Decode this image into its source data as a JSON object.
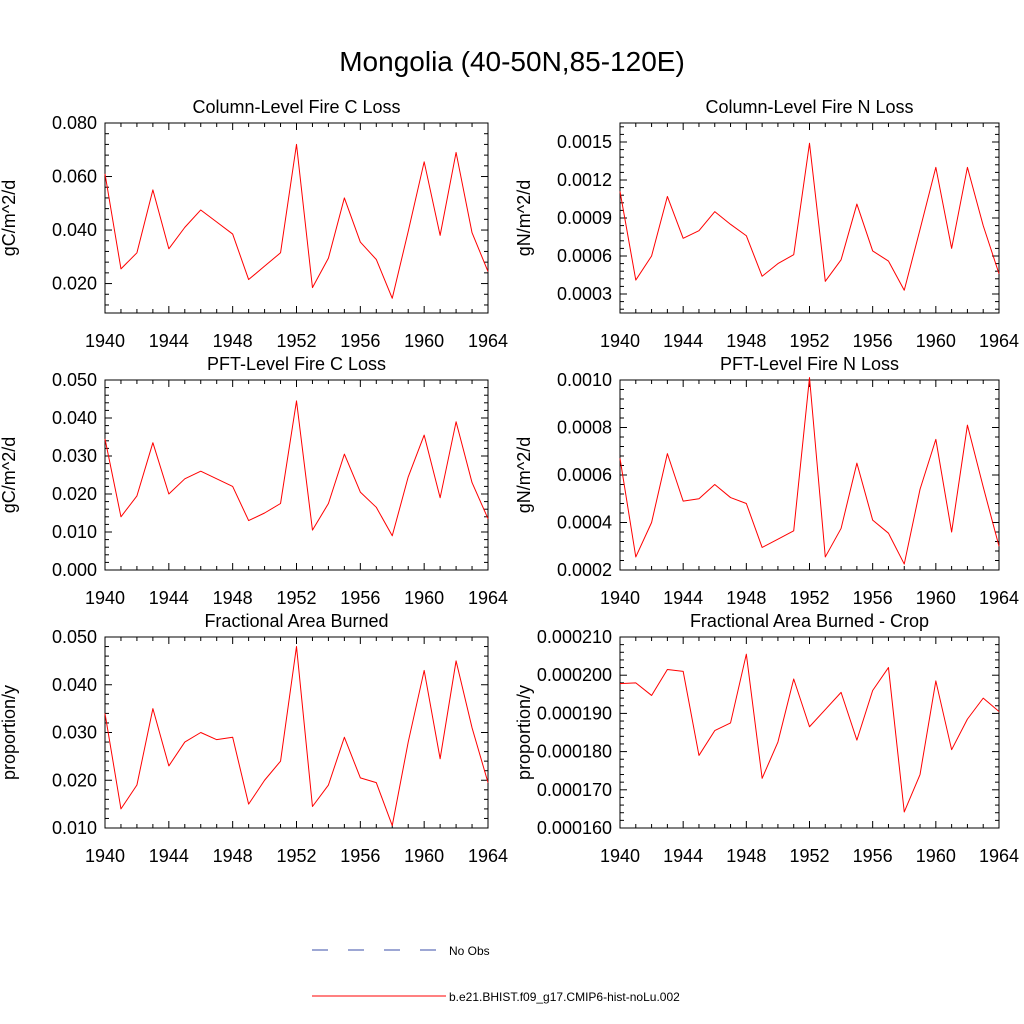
{
  "title": "Mongolia (40-50N,85-120E)",
  "colors": {
    "model_line": "#ff0000",
    "obs_line": "#3b4fa8",
    "axis": "#000000"
  },
  "legend": {
    "entries": [
      {
        "label": "No Obs",
        "style": "dashed",
        "color": "#3b4fa8"
      },
      {
        "label": "b.e21.BHIST.f09_g17.CMIP6-hist-noLu.002",
        "style": "solid",
        "color": "#ff0000"
      }
    ]
  },
  "chart_data": [
    {
      "type": "line",
      "title": "Column-Level Fire C Loss",
      "ylabel": "gC/m^2/d",
      "xlim": [
        1940,
        1964
      ],
      "ylim": [
        0.009,
        0.08
      ],
      "xticks": [
        "1940",
        "1944",
        "1948",
        "1952",
        "1956",
        "1960",
        "1964"
      ],
      "yticks": [
        "0.020",
        "0.040",
        "0.060",
        "0.080"
      ],
      "x": [
        1940,
        1941,
        1942,
        1943,
        1944,
        1945,
        1946,
        1947,
        1948,
        1949,
        1950,
        1951,
        1952,
        1953,
        1954,
        1955,
        1956,
        1957,
        1958,
        1959,
        1960,
        1961,
        1962,
        1963,
        1964
      ],
      "series": [
        {
          "name": "b.e21.BHIST.f09_g17.CMIP6-hist-noLu.002",
          "values": [
            0.061,
            0.0255,
            0.0315,
            0.055,
            0.033,
            0.041,
            0.0475,
            0.043,
            0.0385,
            0.0215,
            0.0265,
            0.0315,
            0.072,
            0.0185,
            0.0295,
            0.052,
            0.0355,
            0.029,
            0.0145,
            0.0395,
            0.0655,
            0.038,
            0.069,
            0.039,
            0.0245
          ]
        }
      ]
    },
    {
      "type": "line",
      "title": "Column-Level Fire N Loss",
      "ylabel": "gN/m^2/d",
      "xlim": [
        1940,
        1964
      ],
      "ylim": [
        0.00015,
        0.00165
      ],
      "xticks": [
        "1940",
        "1944",
        "1948",
        "1952",
        "1956",
        "1960",
        "1964"
      ],
      "yticks": [
        "0.0003",
        "0.0006",
        "0.0009",
        "0.0012",
        "0.0015"
      ],
      "x": [
        1940,
        1941,
        1942,
        1943,
        1944,
        1945,
        1946,
        1947,
        1948,
        1949,
        1950,
        1951,
        1952,
        1953,
        1954,
        1955,
        1956,
        1957,
        1958,
        1959,
        1960,
        1961,
        1962,
        1963,
        1964
      ],
      "series": [
        {
          "name": "b.e21.BHIST.f09_g17.CMIP6-hist-noLu.002",
          "values": [
            0.00111,
            0.00041,
            0.0006,
            0.00107,
            0.00074,
            0.0008,
            0.00095,
            0.00085,
            0.00076,
            0.00044,
            0.00054,
            0.00061,
            0.00149,
            0.0004,
            0.00057,
            0.00101,
            0.00064,
            0.00056,
            0.00033,
            0.00081,
            0.0013,
            0.00066,
            0.0013,
            0.00084,
            0.00046
          ]
        }
      ]
    },
    {
      "type": "line",
      "title": "PFT-Level Fire C Loss",
      "ylabel": "gC/m^2/d",
      "xlim": [
        1940,
        1964
      ],
      "ylim": [
        0.0,
        0.05
      ],
      "xticks": [
        "1940",
        "1944",
        "1948",
        "1952",
        "1956",
        "1960",
        "1964"
      ],
      "yticks": [
        "0.000",
        "0.010",
        "0.020",
        "0.030",
        "0.040",
        "0.050"
      ],
      "x": [
        1940,
        1941,
        1942,
        1943,
        1944,
        1945,
        1946,
        1947,
        1948,
        1949,
        1950,
        1951,
        1952,
        1953,
        1954,
        1955,
        1956,
        1957,
        1958,
        1959,
        1960,
        1961,
        1962,
        1963,
        1964
      ],
      "series": [
        {
          "name": "b.e21.BHIST.f09_g17.CMIP6-hist-noLu.002",
          "values": [
            0.0345,
            0.014,
            0.0195,
            0.0335,
            0.02,
            0.024,
            0.026,
            0.024,
            0.022,
            0.013,
            0.015,
            0.0175,
            0.0445,
            0.0105,
            0.0175,
            0.0305,
            0.0205,
            0.0165,
            0.009,
            0.0245,
            0.0355,
            0.019,
            0.039,
            0.023,
            0.0135
          ]
        }
      ]
    },
    {
      "type": "line",
      "title": "PFT-Level Fire N Loss",
      "ylabel": "gN/m^2/d",
      "xlim": [
        1940,
        1964
      ],
      "ylim": [
        0.0002,
        0.001
      ],
      "xticks": [
        "1940",
        "1944",
        "1948",
        "1952",
        "1956",
        "1960",
        "1964"
      ],
      "yticks": [
        "0.0002",
        "0.0004",
        "0.0006",
        "0.0008",
        "0.0010"
      ],
      "x": [
        1940,
        1941,
        1942,
        1943,
        1944,
        1945,
        1946,
        1947,
        1948,
        1949,
        1950,
        1951,
        1952,
        1953,
        1954,
        1955,
        1956,
        1957,
        1958,
        1959,
        1960,
        1961,
        1962,
        1963,
        1964
      ],
      "series": [
        {
          "name": "b.e21.BHIST.f09_g17.CMIP6-hist-noLu.002",
          "values": [
            0.00067,
            0.000255,
            0.0004,
            0.00069,
            0.00049,
            0.0005,
            0.00056,
            0.000505,
            0.00048,
            0.000295,
            0.00033,
            0.000365,
            0.00101,
            0.000255,
            0.000375,
            0.00065,
            0.00041,
            0.000355,
            0.000225,
            0.00054,
            0.00075,
            0.00036,
            0.00081,
            0.00055,
            0.0003
          ]
        }
      ]
    },
    {
      "type": "line",
      "title": "Fractional Area Burned",
      "ylabel": "proportion/y",
      "xlim": [
        1940,
        1964
      ],
      "ylim": [
        0.01,
        0.05
      ],
      "xticks": [
        "1940",
        "1944",
        "1948",
        "1952",
        "1956",
        "1960",
        "1964"
      ],
      "yticks": [
        "0.010",
        "0.020",
        "0.030",
        "0.040",
        "0.050"
      ],
      "x": [
        1940,
        1941,
        1942,
        1943,
        1944,
        1945,
        1946,
        1947,
        1948,
        1949,
        1950,
        1951,
        1952,
        1953,
        1954,
        1955,
        1956,
        1957,
        1958,
        1959,
        1960,
        1961,
        1962,
        1963,
        1964
      ],
      "series": [
        {
          "name": "b.e21.BHIST.f09_g17.CMIP6-hist-noLu.002",
          "values": [
            0.034,
            0.014,
            0.019,
            0.035,
            0.023,
            0.028,
            0.03,
            0.0285,
            0.029,
            0.015,
            0.02,
            0.024,
            0.048,
            0.0145,
            0.019,
            0.029,
            0.0205,
            0.0195,
            0.0105,
            0.028,
            0.043,
            0.0245,
            0.045,
            0.031,
            0.0195
          ]
        }
      ]
    },
    {
      "type": "line",
      "title": "Fractional Area Burned - Crop",
      "ylabel": "proportion/y",
      "xlim": [
        1940,
        1964
      ],
      "ylim": [
        0.00016,
        0.00021
      ],
      "xticks": [
        "1940",
        "1944",
        "1948",
        "1952",
        "1956",
        "1960",
        "1964"
      ],
      "yticks": [
        "0.000160",
        "0.000170",
        "0.000180",
        "0.000190",
        "0.000200",
        "0.000210"
      ],
      "x": [
        1940,
        1941,
        1942,
        1943,
        1944,
        1945,
        1946,
        1947,
        1948,
        1949,
        1950,
        1951,
        1952,
        1953,
        1954,
        1955,
        1956,
        1957,
        1958,
        1959,
        1960,
        1961,
        1962,
        1963,
        1964
      ],
      "series": [
        {
          "name": "b.e21.BHIST.f09_g17.CMIP6-hist-noLu.002",
          "values": [
            0.0001978,
            0.000198,
            0.0001947,
            0.0002015,
            0.000201,
            0.000179,
            0.0001855,
            0.0001875,
            0.0002055,
            0.000173,
            0.0001825,
            0.000199,
            0.0001865,
            0.000191,
            0.0001955,
            0.000183,
            0.000196,
            0.000202,
            0.0001642,
            0.000174,
            0.0001985,
            0.0001805,
            0.0001885,
            0.000194,
            0.0001905
          ]
        }
      ]
    }
  ]
}
